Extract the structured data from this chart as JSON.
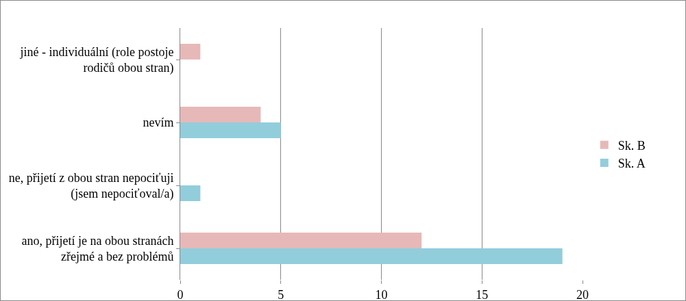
{
  "chart_data": {
    "type": "bar",
    "orientation": "horizontal",
    "categories": [
      "jiné - individuální (role postoje rodičů obou stran)",
      "nevím",
      "ne, přijetí z obou stran nepociťuji (jsem nepociťoval/a)",
      "ano, přijetí je na obou stranách zřejmé a bez problémů"
    ],
    "series": [
      {
        "name": "Sk. B",
        "color": "#e6b9b8",
        "values": [
          1,
          4,
          0,
          12
        ]
      },
      {
        "name": "Sk. A",
        "color": "#92cddc",
        "values": [
          0,
          5,
          1,
          19
        ]
      }
    ],
    "xlim": [
      0,
      20
    ],
    "xticks": [
      0,
      5,
      10,
      15,
      20
    ],
    "grid": "x",
    "legend": "right"
  }
}
